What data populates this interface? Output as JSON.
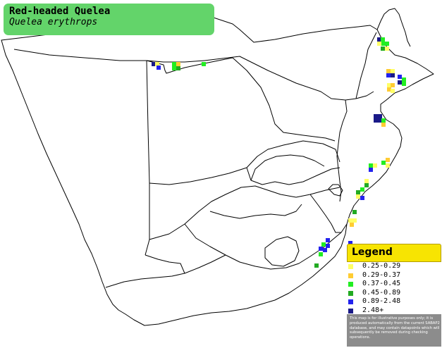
{
  "title": {
    "common_name": "Red-headed Quelea",
    "scientific_name": "Quelea erythrops"
  },
  "legend": {
    "heading": "Legend",
    "items": [
      {
        "label": "0.25-0.29",
        "color": "#ffff66"
      },
      {
        "label": "0.29-0.37",
        "color": "#ffcc33"
      },
      {
        "label": "0.37-0.45",
        "color": "#22ee22"
      },
      {
        "label": "0.45-0.89",
        "color": "#22aa22"
      },
      {
        "label": "0.89-2.48",
        "color": "#2222ee"
      },
      {
        "label": "2.48+",
        "color": "#1a1a88"
      }
    ],
    "note": "This map is for illustrative purposes only; it is produced automatically from the current SABAP2 database, and may contain datapoints which will subsequently be removed during checking operations."
  },
  "colors": {
    "title_background": "#63d46a",
    "legend_header": "#f7e402",
    "legend_note_background": "#8c8c8c",
    "map_lines": "#000000"
  }
}
